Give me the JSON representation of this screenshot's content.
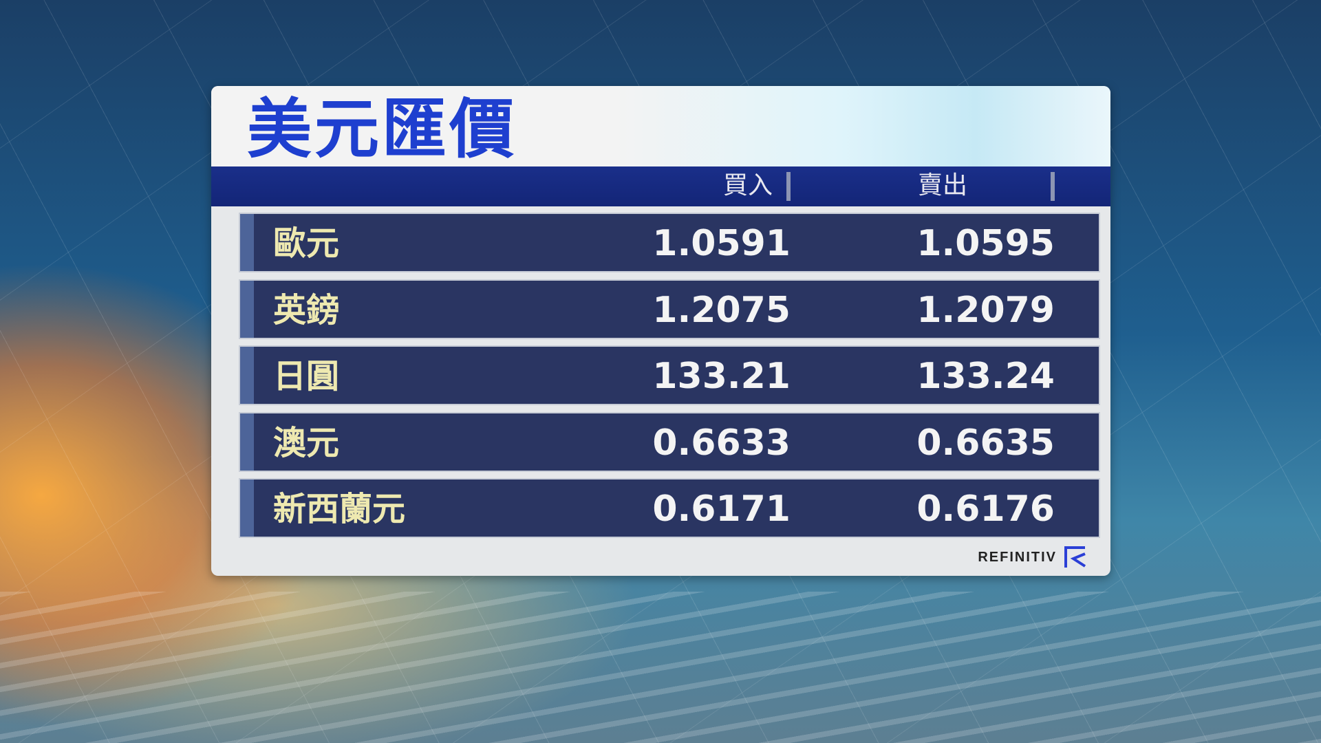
{
  "title": "美元匯價",
  "columns": {
    "buy": "買入",
    "sell": "賣出"
  },
  "rows": [
    {
      "currency": "歐元",
      "buy": "1.0591",
      "sell": "1.0595"
    },
    {
      "currency": "英鎊",
      "buy": "1.2075",
      "sell": "1.2079"
    },
    {
      "currency": "日圓",
      "buy": "133.21",
      "sell": "133.24"
    },
    {
      "currency": "澳元",
      "buy": "0.6633",
      "sell": "0.6635"
    },
    {
      "currency": "新西蘭元",
      "buy": "0.6171",
      "sell": "0.6176"
    }
  ],
  "source": {
    "name": "REFINITIV",
    "icon": "refinitiv-logo-icon"
  },
  "colors": {
    "title": "#1e3fcf",
    "header": "#132577",
    "row": "#2a3562",
    "label": "#eee9b0",
    "value": "#f4f4f4"
  }
}
